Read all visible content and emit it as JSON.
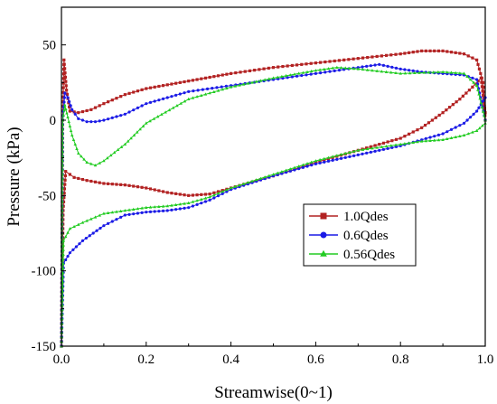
{
  "chart_data": {
    "type": "line",
    "title": "",
    "xlabel": "Streamwise(0~1)",
    "ylabel": "Pressure (kPa)",
    "xlim": [
      0.0,
      1.0
    ],
    "ylim": [
      -150,
      75
    ],
    "x_ticks": [
      "0.0",
      "0.2",
      "0.4",
      "0.6",
      "0.8",
      "1.0"
    ],
    "y_ticks": [
      "50",
      "0",
      "-50",
      "-100",
      "-150"
    ],
    "x_tick_values": [
      0.0,
      0.2,
      0.4,
      0.6,
      0.8,
      1.0
    ],
    "y_tick_values": [
      50,
      0,
      -50,
      -100,
      -150
    ],
    "grid": false,
    "legend_position": "center-right",
    "series": [
      {
        "name": "1.0Qdes",
        "color": "#b22222",
        "marker": "square",
        "curves": [
          [
            [
              0.0,
              -150
            ],
            [
              0.003,
              0
            ],
            [
              0.006,
              40
            ],
            [
              0.012,
              20
            ],
            [
              0.02,
              6
            ],
            [
              0.04,
              5
            ],
            [
              0.07,
              7
            ],
            [
              0.1,
              11
            ],
            [
              0.15,
              17
            ],
            [
              0.2,
              21
            ],
            [
              0.3,
              26
            ],
            [
              0.4,
              31
            ],
            [
              0.5,
              35
            ],
            [
              0.6,
              38
            ],
            [
              0.7,
              41
            ],
            [
              0.8,
              44
            ],
            [
              0.85,
              46
            ],
            [
              0.9,
              46
            ],
            [
              0.95,
              44
            ],
            [
              0.98,
              40
            ],
            [
              0.995,
              25
            ],
            [
              1.0,
              0
            ]
          ],
          [
            [
              0.0,
              -150
            ],
            [
              0.004,
              -60
            ],
            [
              0.01,
              -34
            ],
            [
              0.03,
              -38
            ],
            [
              0.06,
              -40
            ],
            [
              0.1,
              -42
            ],
            [
              0.15,
              -43
            ],
            [
              0.2,
              -45
            ],
            [
              0.25,
              -48
            ],
            [
              0.3,
              -50
            ],
            [
              0.35,
              -49
            ],
            [
              0.4,
              -45
            ],
            [
              0.5,
              -37
            ],
            [
              0.6,
              -28
            ],
            [
              0.7,
              -20
            ],
            [
              0.8,
              -12
            ],
            [
              0.85,
              -5
            ],
            [
              0.9,
              5
            ],
            [
              0.94,
              14
            ],
            [
              0.97,
              22
            ],
            [
              0.99,
              28
            ],
            [
              1.0,
              5
            ]
          ]
        ]
      },
      {
        "name": "0.6Qdes",
        "color": "#1a1ae6",
        "marker": "circle",
        "curves": [
          [
            [
              0.0,
              -150
            ],
            [
              0.003,
              0
            ],
            [
              0.008,
              18
            ],
            [
              0.015,
              15
            ],
            [
              0.025,
              7
            ],
            [
              0.04,
              1
            ],
            [
              0.06,
              -1
            ],
            [
              0.08,
              -1
            ],
            [
              0.1,
              0
            ],
            [
              0.15,
              4
            ],
            [
              0.2,
              11
            ],
            [
              0.3,
              19
            ],
            [
              0.4,
              23
            ],
            [
              0.5,
              27
            ],
            [
              0.6,
              31
            ],
            [
              0.7,
              35
            ],
            [
              0.75,
              37
            ],
            [
              0.8,
              34
            ],
            [
              0.85,
              32
            ],
            [
              0.9,
              31
            ],
            [
              0.95,
              30
            ],
            [
              0.98,
              27
            ],
            [
              1.0,
              0
            ]
          ],
          [
            [
              0.0,
              -150
            ],
            [
              0.005,
              -95
            ],
            [
              0.02,
              -88
            ],
            [
              0.05,
              -80
            ],
            [
              0.1,
              -70
            ],
            [
              0.15,
              -63
            ],
            [
              0.2,
              -61
            ],
            [
              0.25,
              -60
            ],
            [
              0.3,
              -58
            ],
            [
              0.35,
              -53
            ],
            [
              0.4,
              -46
            ],
            [
              0.5,
              -37
            ],
            [
              0.6,
              -29
            ],
            [
              0.7,
              -23
            ],
            [
              0.8,
              -17
            ],
            [
              0.85,
              -13
            ],
            [
              0.9,
              -9
            ],
            [
              0.95,
              -2
            ],
            [
              0.98,
              6
            ],
            [
              1.0,
              15
            ]
          ]
        ]
      },
      {
        "name": "0.56Qdes",
        "color": "#22cc22",
        "marker": "triangle",
        "curves": [
          [
            [
              0.0,
              -150
            ],
            [
              0.003,
              0
            ],
            [
              0.008,
              10
            ],
            [
              0.015,
              2
            ],
            [
              0.025,
              -10
            ],
            [
              0.04,
              -22
            ],
            [
              0.06,
              -28
            ],
            [
              0.08,
              -30
            ],
            [
              0.1,
              -27
            ],
            [
              0.15,
              -16
            ],
            [
              0.2,
              -2
            ],
            [
              0.3,
              14
            ],
            [
              0.4,
              22
            ],
            [
              0.5,
              28
            ],
            [
              0.6,
              33
            ],
            [
              0.65,
              35
            ],
            [
              0.7,
              34
            ],
            [
              0.8,
              31
            ],
            [
              0.9,
              32
            ],
            [
              0.95,
              31
            ],
            [
              0.98,
              23
            ],
            [
              1.0,
              0
            ]
          ],
          [
            [
              0.0,
              -150
            ],
            [
              0.005,
              -80
            ],
            [
              0.02,
              -72
            ],
            [
              0.05,
              -68
            ],
            [
              0.1,
              -62
            ],
            [
              0.15,
              -60
            ],
            [
              0.2,
              -58
            ],
            [
              0.25,
              -57
            ],
            [
              0.3,
              -55
            ],
            [
              0.35,
              -51
            ],
            [
              0.4,
              -45
            ],
            [
              0.5,
              -36
            ],
            [
              0.6,
              -27
            ],
            [
              0.7,
              -20
            ],
            [
              0.8,
              -16
            ],
            [
              0.85,
              -14
            ],
            [
              0.9,
              -13
            ],
            [
              0.95,
              -10
            ],
            [
              0.98,
              -7
            ],
            [
              1.0,
              -2
            ]
          ]
        ]
      }
    ]
  }
}
